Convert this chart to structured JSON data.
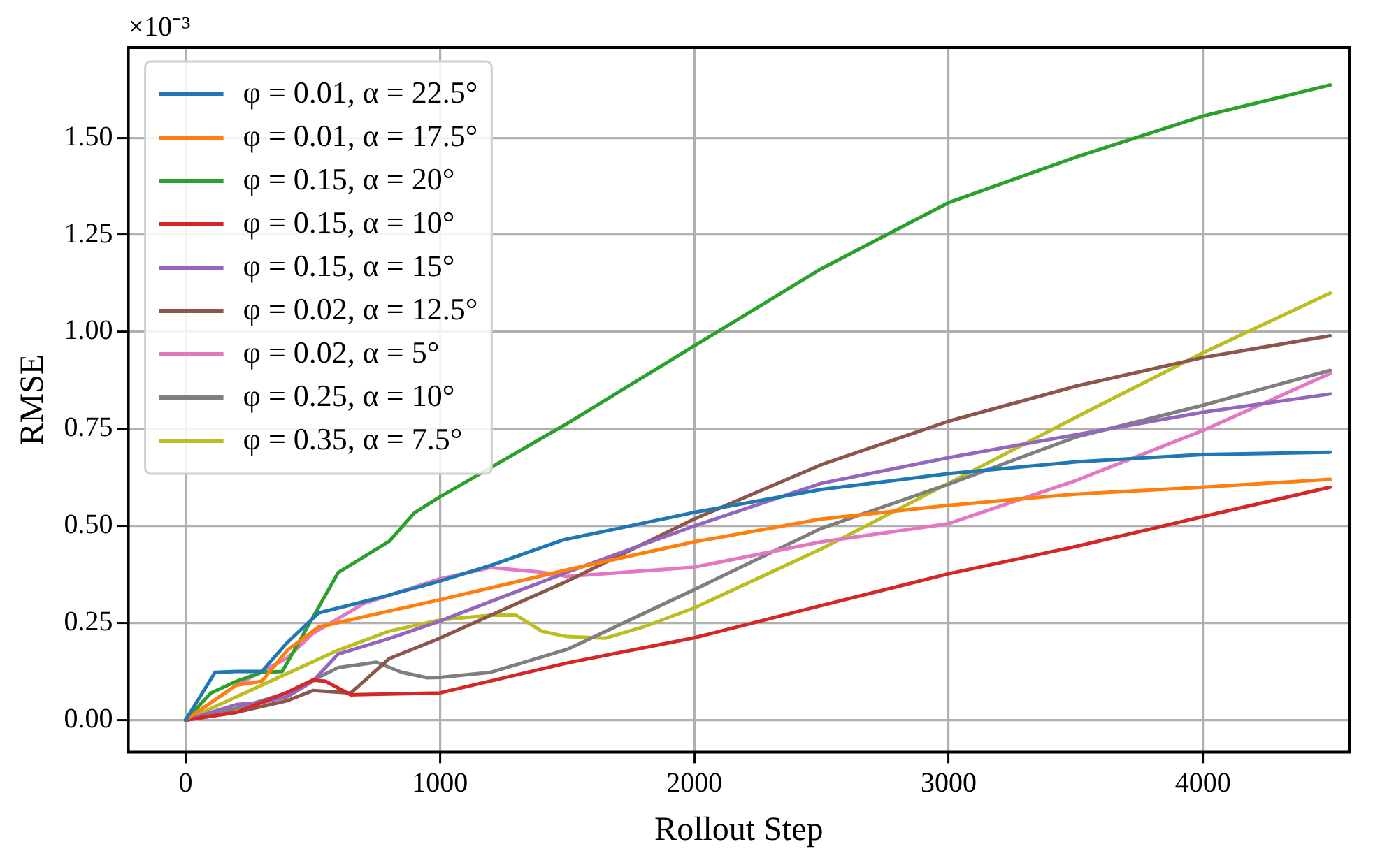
{
  "chart_data": {
    "type": "line",
    "xlabel": "Rollout Step",
    "ylabel": "RMSE",
    "annotations": [
      "×10⁻³"
    ],
    "xlim": [
      -225,
      4575
    ],
    "xticks": [
      0,
      1000,
      2000,
      3000,
      4000
    ],
    "ylim": [
      -0.0825,
      1.7325
    ],
    "yticks": [
      {
        "value": 0,
        "label": "0.00"
      },
      {
        "value": 0.25,
        "label": "0.25"
      },
      {
        "value": 0.5,
        "label": "0.50"
      },
      {
        "value": 0.75,
        "label": "0.75"
      },
      {
        "value": 1,
        "label": "1.00"
      },
      {
        "value": 1.25,
        "label": "1.25"
      },
      {
        "value": 1.5,
        "label": "1.50"
      }
    ],
    "grid": true,
    "legend": "top left",
    "marker": "none",
    "line_style": "solid",
    "series": [
      {
        "name": "φ = 0.01, α = 22.5°",
        "color": "#1f77b4",
        "x": [
          0,
          116,
          200,
          300,
          400,
          523,
          773,
          1000,
          1207,
          1484,
          2000,
          2500,
          3000,
          3500,
          4000,
          4500
        ],
        "values": [
          0,
          0.123,
          0.125,
          0.125,
          0.2,
          0.276,
          0.317,
          0.358,
          0.4,
          0.464,
          0.535,
          0.594,
          0.635,
          0.665,
          0.684,
          0.69
        ]
      },
      {
        "name": "φ = 0.01, α = 17.5°",
        "color": "#ff7f0e",
        "x": [
          0,
          200,
          300,
          400,
          523,
          1000,
          1500,
          2000,
          2500,
          3000,
          3500,
          4000,
          4500
        ],
        "values": [
          0,
          0.09,
          0.1,
          0.18,
          0.24,
          0.31,
          0.387,
          0.459,
          0.518,
          0.553,
          0.582,
          0.6,
          0.62
        ]
      },
      {
        "name": "φ = 0.15, α = 20°",
        "color": "#2ca02c",
        "x": [
          0,
          100,
          200,
          300,
          380,
          500,
          600,
          800,
          900,
          1000,
          1500,
          2000,
          2500,
          3000,
          3500,
          4000,
          4500
        ],
        "values": [
          0,
          0.07,
          0.1,
          0.123,
          0.125,
          0.264,
          0.38,
          0.46,
          0.534,
          0.575,
          0.764,
          0.964,
          1.163,
          1.333,
          1.45,
          1.556,
          1.636
        ]
      },
      {
        "name": "φ = 0.15, α = 10°",
        "color": "#d62728",
        "x": [
          0,
          200,
          394,
          500,
          550,
          650,
          1000,
          1500,
          2000,
          2500,
          3000,
          3500,
          4000,
          4500
        ],
        "values": [
          0,
          0.02,
          0.07,
          0.103,
          0.1,
          0.065,
          0.07,
          0.147,
          0.212,
          0.295,
          0.377,
          0.447,
          0.524,
          0.6
        ]
      },
      {
        "name": "φ = 0.15, α = 15°",
        "color": "#9467bd",
        "x": [
          0,
          200,
          300,
          400,
          500,
          600,
          800,
          1000,
          1500,
          2000,
          2500,
          3000,
          3500,
          4000,
          4500
        ],
        "values": [
          0,
          0.04,
          0.045,
          0.06,
          0.1,
          0.17,
          0.21,
          0.255,
          0.381,
          0.5,
          0.61,
          0.676,
          0.735,
          0.793,
          0.84
        ]
      },
      {
        "name": "φ = 0.02, α = 12.5°",
        "color": "#8c564b",
        "x": [
          0,
          200,
          400,
          500,
          650,
          800,
          1000,
          1500,
          2000,
          2500,
          3000,
          3500,
          4000,
          4500
        ],
        "values": [
          0,
          0.02,
          0.05,
          0.076,
          0.07,
          0.158,
          0.211,
          0.358,
          0.518,
          0.658,
          0.77,
          0.86,
          0.934,
          0.99
        ]
      },
      {
        "name": "φ = 0.02, α = 5°",
        "color": "#e377c2",
        "x": [
          0,
          200,
          400,
          500,
          700,
          1000,
          1200,
          1400,
          1500,
          2000,
          2500,
          3000,
          3500,
          4000,
          4500
        ],
        "values": [
          0,
          0.09,
          0.16,
          0.223,
          0.3,
          0.364,
          0.393,
          0.381,
          0.37,
          0.394,
          0.459,
          0.506,
          0.617,
          0.746,
          0.893
        ]
      },
      {
        "name": "φ = 0.25, α = 10°",
        "color": "#7f7f7f",
        "x": [
          0,
          200,
          400,
          600,
          750,
          850,
          950,
          1000,
          1200,
          1500,
          2000,
          2500,
          3000,
          3500,
          4000,
          4500
        ],
        "values": [
          0,
          0.03,
          0.07,
          0.135,
          0.149,
          0.123,
          0.109,
          0.11,
          0.123,
          0.182,
          0.336,
          0.494,
          0.608,
          0.729,
          0.811,
          0.901
        ]
      },
      {
        "name": "φ = 0.35, α = 7.5°",
        "color": "#bcbd22",
        "x": [
          0,
          200,
          400,
          600,
          800,
          1000,
          1200,
          1300,
          1400,
          1500,
          1650,
          1800,
          2000,
          2500,
          3000,
          3500,
          4000,
          4500
        ],
        "values": [
          0,
          0.06,
          0.12,
          0.18,
          0.229,
          0.258,
          0.27,
          0.27,
          0.229,
          0.215,
          0.211,
          0.24,
          0.289,
          0.441,
          0.61,
          0.78,
          0.946,
          1.1
        ]
      }
    ]
  }
}
